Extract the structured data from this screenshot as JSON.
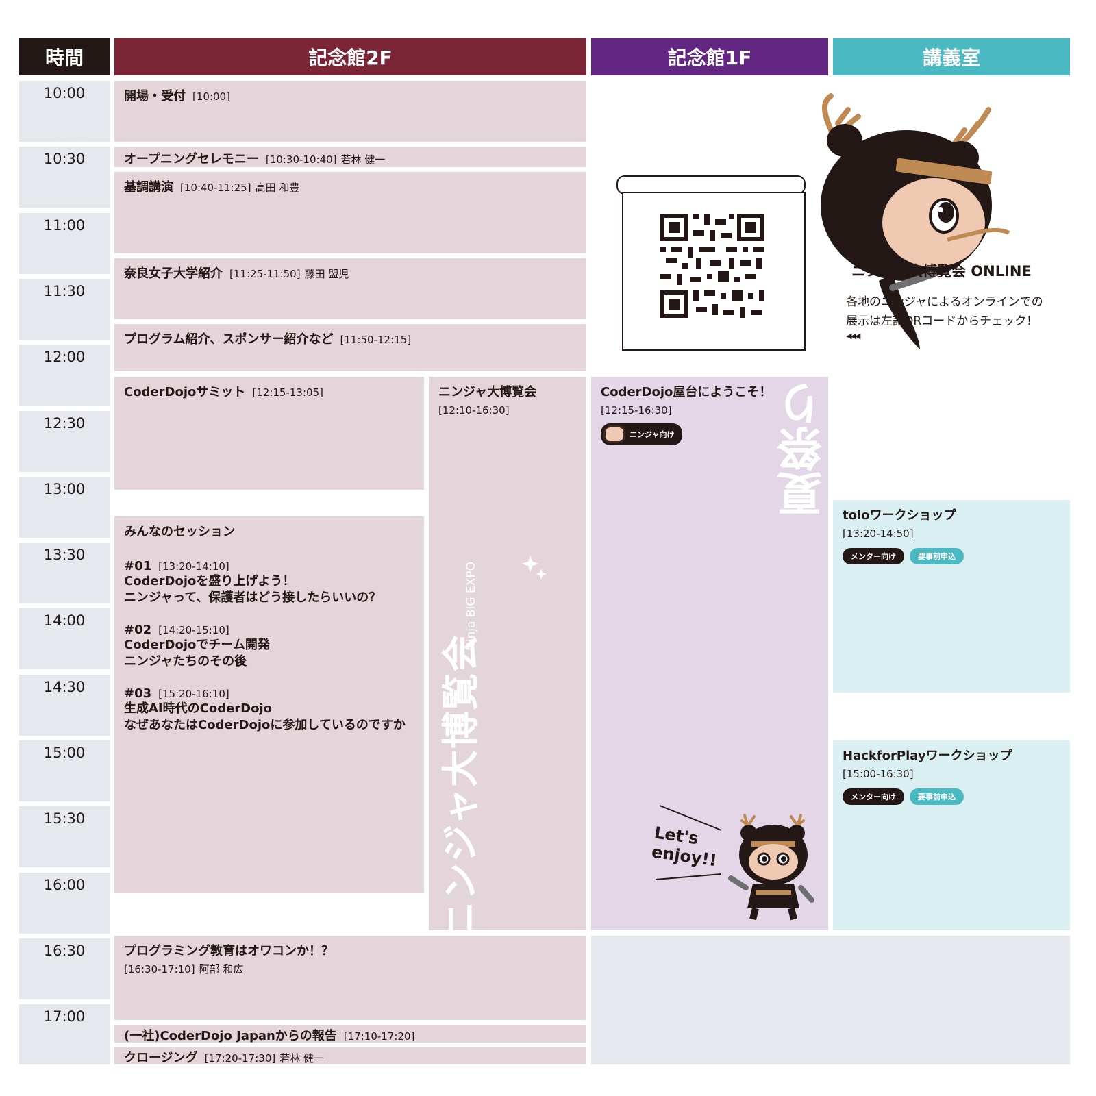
{
  "headers": {
    "time": "時間",
    "hall2f": "記念館2F",
    "hall1f": "記念館1F",
    "lecture": "講義室"
  },
  "colors": {
    "hall2f": "#7c2537",
    "hall1f": "#632683",
    "lecture": "#4bb9c1",
    "time": "#231815"
  },
  "times": [
    "10:00",
    "10:30",
    "11:00",
    "11:30",
    "12:00",
    "12:30",
    "13:00",
    "13:30",
    "14:00",
    "14:30",
    "15:00",
    "15:30",
    "16:00",
    "16:30",
    "17:00"
  ],
  "hall2f": {
    "opening": {
      "title": "開場・受付",
      "time": "[10:00]"
    },
    "ceremony": {
      "title": "オープニングセレモニー",
      "time": "[10:30-10:40]",
      "speaker": "若林 健一"
    },
    "keynote": {
      "title": "基調講演",
      "time": "[10:40-11:25]",
      "speaker": "高田 和豊"
    },
    "nara": {
      "title": "奈良女子大学紹介",
      "time": "[11:25-11:50]",
      "speaker": "藤田 盟児"
    },
    "program": {
      "title": "プログラム紹介、スポンサー紹介など",
      "time": "[11:50-12:15]"
    },
    "summit": {
      "title": "CoderDojoサミット",
      "time": "[12:15-13:05]"
    },
    "expo": {
      "title": "ニンジャ大博覧会",
      "time": "[12:10-16:30]",
      "logo_text": "ニンジャ大博覧会",
      "logo_sub": "Ninja BIG EXPO"
    },
    "sessions": {
      "title": "みんなのセッション",
      "s1": {
        "num": "#01",
        "time": "[13:20-14:10]",
        "line1": "CoderDojoを盛り上げよう！",
        "line2": "ニンジャって、保護者はどう接したらいいの？"
      },
      "s2": {
        "num": "#02",
        "time": "[14:20-15:10]",
        "line1": "CoderDojoでチーム開発",
        "line2": "ニンジャたちのその後"
      },
      "s3": {
        "num": "#03",
        "time": "[15:20-16:10]",
        "line1": "生成AI時代のCoderDojo",
        "line2": "なぜあなたはCoderDojoに参加しているのですか"
      }
    },
    "education": {
      "title": "プログラミング教育はオワコンか！？",
      "time": "[16:30-17:10]",
      "speaker": "阿部 和広"
    },
    "report": {
      "title": "(一社)CoderDojo Japanからの報告",
      "time": "[17:10-17:20]"
    },
    "closing": {
      "title": "クロージング",
      "time": "[17:20-17:30]",
      "speaker": "若林 健一"
    }
  },
  "hall1f": {
    "yatai": {
      "title": "CoderDojo屋台にようこそ！",
      "time": "[12:15-16:30]",
      "badge": "ニンジャ向け",
      "deco_text": "夏祭り"
    },
    "mascot_text1": "Let's",
    "mascot_text2": "enjoy!!"
  },
  "online": {
    "title": "ニンジャ大博覧会 ONLINE",
    "desc1": "各地のニンジャによるオンラインでの",
    "desc2": "展示は左記QRコードからチェック！",
    "arrows": "◀◀◀"
  },
  "lecture": {
    "toio": {
      "title": "toioワークショップ",
      "time": "[13:20-14:50]",
      "badge1": "メンター向け",
      "badge2": "要事前申込"
    },
    "hfp": {
      "title": "HackforPlayワークショップ",
      "time": "[15:00-16:30]",
      "badge1": "メンター向け",
      "badge2": "要事前申込"
    }
  }
}
